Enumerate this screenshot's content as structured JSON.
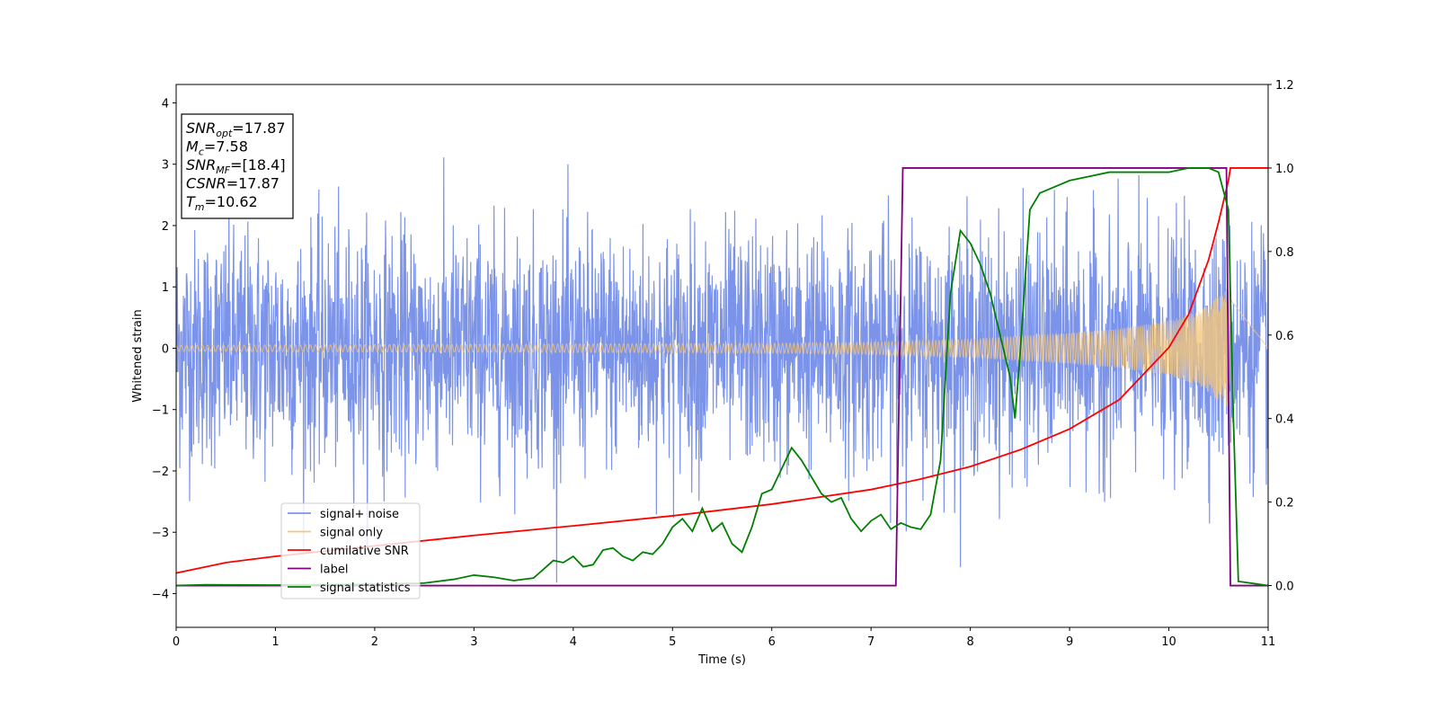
{
  "chart_data": {
    "type": "line",
    "xlabel": "Time (s)",
    "ylabel": "Whitened strain",
    "xlim": [
      0,
      11
    ],
    "ylim": [
      -4.55,
      4.3
    ],
    "y2lim": [
      -0.1,
      1.2
    ],
    "xticks": [
      0,
      1,
      2,
      3,
      4,
      5,
      6,
      7,
      8,
      9,
      10,
      11
    ],
    "yticks": [
      -4,
      -3,
      -2,
      -1,
      0,
      1,
      2,
      3,
      4
    ],
    "y2ticks": [
      0.0,
      0.2,
      0.4,
      0.6,
      0.8,
      1.0,
      1.2
    ],
    "grid": false,
    "legend_position": "lower-left",
    "annotation": {
      "lines": [
        {
          "base": "SNR",
          "sub": "opt",
          "rest": "=17.87"
        },
        {
          "base": "M",
          "sub": "c",
          "rest": "=7.58"
        },
        {
          "base": "SNR",
          "sub": "MF",
          "rest": "=[18.4]"
        },
        {
          "base": "CSNR",
          "sub": "",
          "rest": "=17.87"
        },
        {
          "base": "T",
          "sub": "m",
          "rest": "=10.62"
        }
      ]
    },
    "series": [
      {
        "name": "signal+ noise",
        "color": "#7b93e8",
        "axis": "left",
        "kind": "noise",
        "approx_std": 0.95,
        "t_end": 11
      },
      {
        "name": "signal only",
        "color": "#f5c77a",
        "axis": "left",
        "kind": "chirp",
        "t_coalescence": 10.62,
        "amplitude_envelope": {
          "t": [
            0,
            2,
            4,
            6,
            7,
            8,
            9,
            9.5,
            10,
            10.3,
            10.5,
            10.62
          ],
          "a": [
            0.05,
            0.06,
            0.07,
            0.08,
            0.1,
            0.15,
            0.25,
            0.32,
            0.45,
            0.6,
            0.85,
            1.0
          ]
        }
      },
      {
        "name": "cumilative SNR",
        "color": "#ff0000",
        "axis": "right",
        "x": [
          0,
          0.5,
          1,
          2,
          3,
          4,
          5,
          6,
          7,
          7.5,
          8,
          8.5,
          9,
          9.5,
          10,
          10.2,
          10.4,
          10.5,
          10.6,
          10.62,
          11
        ],
        "y": [
          0.03,
          0.055,
          0.07,
          0.095,
          0.12,
          0.143,
          0.167,
          0.195,
          0.23,
          0.255,
          0.285,
          0.325,
          0.375,
          0.445,
          0.57,
          0.65,
          0.78,
          0.87,
          0.97,
          1.0,
          1.0
        ]
      },
      {
        "name": "label",
        "color": "#800080",
        "axis": "right",
        "x": [
          0,
          7.25,
          7.32,
          10.58,
          10.62,
          11
        ],
        "y": [
          0,
          0,
          1,
          1,
          0,
          0
        ]
      },
      {
        "name": "signal statistics",
        "color": "#008000",
        "axis": "right",
        "x": [
          0,
          0.3,
          1,
          2,
          2.5,
          2.8,
          3.0,
          3.2,
          3.4,
          3.6,
          3.8,
          3.9,
          4.0,
          4.1,
          4.2,
          4.3,
          4.4,
          4.5,
          4.6,
          4.7,
          4.8,
          4.9,
          5.0,
          5.1,
          5.2,
          5.3,
          5.4,
          5.5,
          5.6,
          5.7,
          5.8,
          5.9,
          6.0,
          6.1,
          6.2,
          6.3,
          6.4,
          6.5,
          6.6,
          6.7,
          6.8,
          6.9,
          7.0,
          7.1,
          7.2,
          7.3,
          7.4,
          7.5,
          7.6,
          7.7,
          7.8,
          7.9,
          8.0,
          8.1,
          8.2,
          8.3,
          8.4,
          8.45,
          8.5,
          8.6,
          8.7,
          8.8,
          9.0,
          9.2,
          9.4,
          9.6,
          9.8,
          10.0,
          10.2,
          10.4,
          10.5,
          10.6,
          10.65,
          10.7,
          11
        ],
        "y": [
          0.0,
          0.002,
          0.001,
          0.003,
          0.006,
          0.015,
          0.025,
          0.02,
          0.012,
          0.018,
          0.06,
          0.055,
          0.07,
          0.045,
          0.05,
          0.085,
          0.09,
          0.07,
          0.06,
          0.08,
          0.075,
          0.1,
          0.14,
          0.16,
          0.13,
          0.185,
          0.13,
          0.15,
          0.1,
          0.08,
          0.14,
          0.22,
          0.23,
          0.28,
          0.33,
          0.3,
          0.26,
          0.22,
          0.2,
          0.21,
          0.16,
          0.13,
          0.155,
          0.17,
          0.135,
          0.15,
          0.14,
          0.135,
          0.17,
          0.3,
          0.7,
          0.85,
          0.82,
          0.77,
          0.7,
          0.6,
          0.5,
          0.4,
          0.55,
          0.9,
          0.94,
          0.95,
          0.97,
          0.98,
          0.99,
          0.99,
          0.99,
          0.99,
          1.0,
          1.0,
          0.99,
          0.9,
          0.4,
          0.01,
          0.0
        ]
      }
    ]
  }
}
